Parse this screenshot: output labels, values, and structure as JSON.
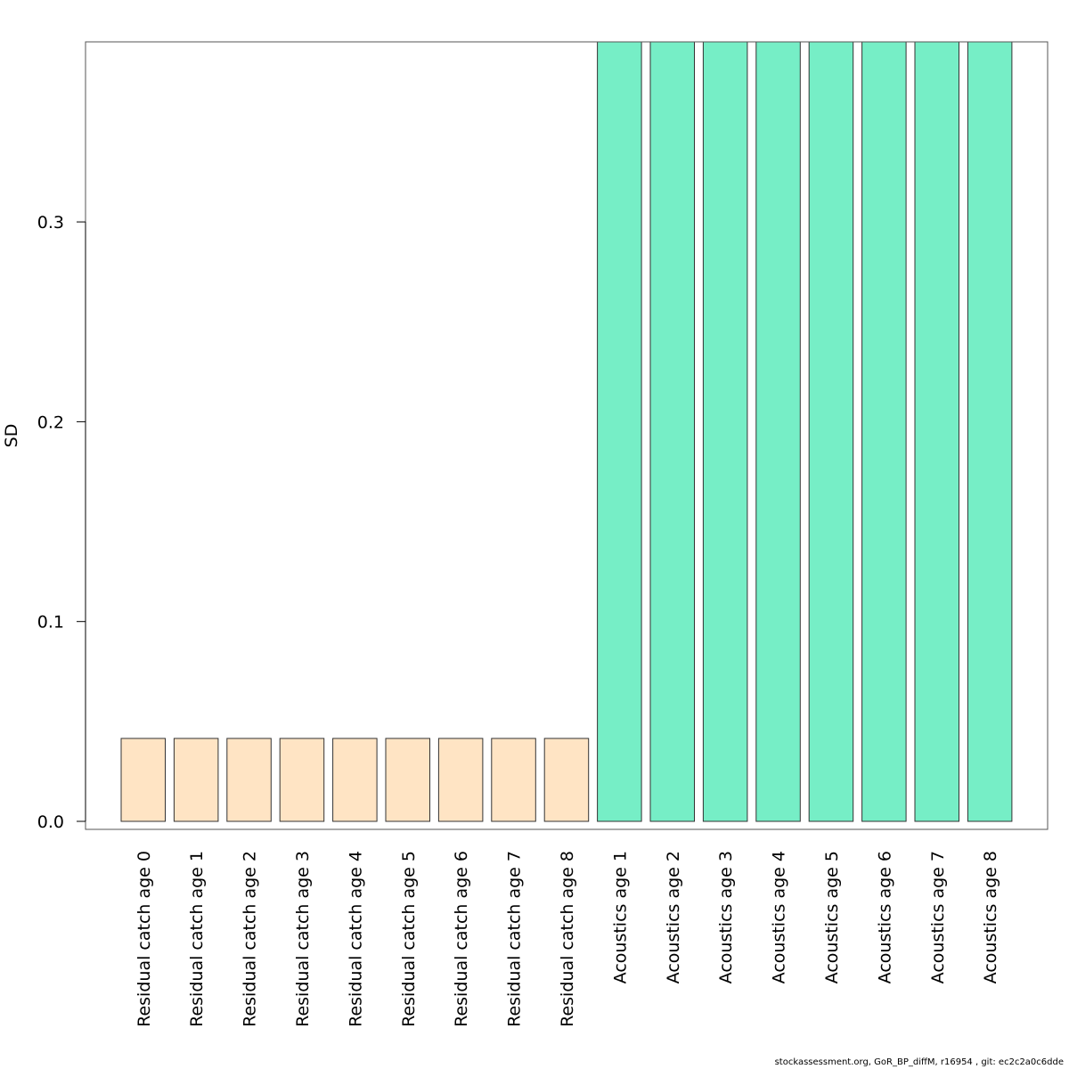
{
  "chart_data": {
    "type": "bar",
    "ylabel": "SD",
    "xlabel": "",
    "ylim": [
      0,
      0.3901
    ],
    "yticks": [
      0.0,
      0.1,
      0.2,
      0.3
    ],
    "ytick_labels": [
      "0.0",
      "0.1",
      "0.2",
      "0.3"
    ],
    "categories": [
      "Residual catch age 0",
      "Residual catch age 1",
      "Residual catch age 2",
      "Residual catch age 3",
      "Residual catch age 4",
      "Residual catch age 5",
      "Residual catch age 6",
      "Residual catch age 7",
      "Residual catch age 8",
      "Acoustics age 1",
      "Acoustics age 2",
      "Acoustics age 3",
      "Acoustics age 4",
      "Acoustics age 5",
      "Acoustics age 6",
      "Acoustics age 7",
      "Acoustics age 8"
    ],
    "values": [
      0.0415,
      0.0415,
      0.0415,
      0.0415,
      0.0415,
      0.0415,
      0.0415,
      0.0415,
      0.0415,
      0.3901,
      0.3901,
      0.3901,
      0.3901,
      0.3901,
      0.3901,
      0.3901,
      0.3901
    ],
    "bar_colors": [
      "#FFE4C4",
      "#FFE4C4",
      "#FFE4C4",
      "#FFE4C4",
      "#FFE4C4",
      "#FFE4C4",
      "#FFE4C4",
      "#FFE4C4",
      "#FFE4C4",
      "#76EEC6",
      "#76EEC6",
      "#76EEC6",
      "#76EEC6",
      "#76EEC6",
      "#76EEC6",
      "#76EEC6",
      "#76EEC6"
    ],
    "grid": false,
    "legend": "none"
  },
  "footer": {
    "text": "stockassessment.org, GoR_BP_diffM, r16954 , git: ec2c2a0c6dde"
  }
}
